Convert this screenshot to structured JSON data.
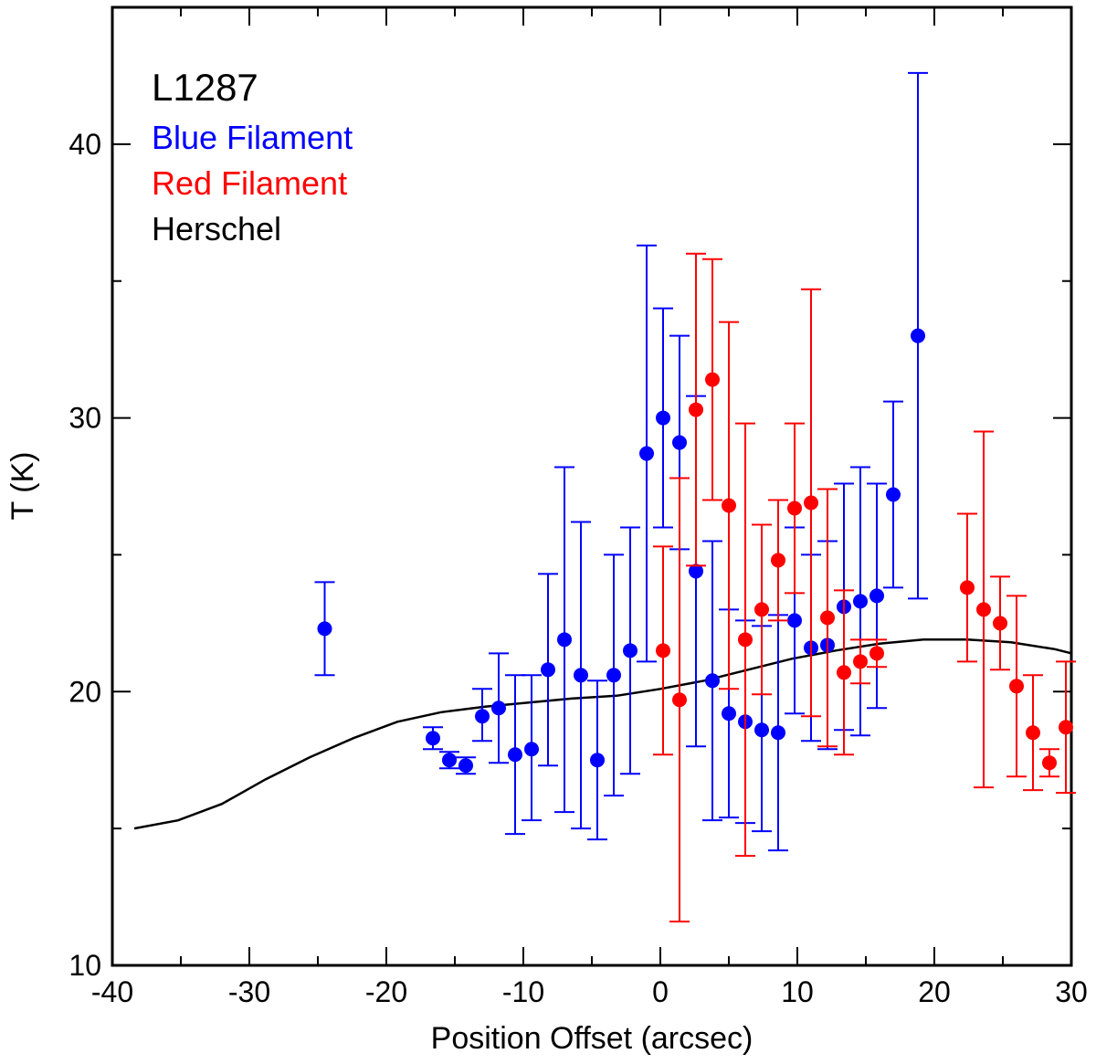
{
  "chart_data": {
    "type": "scatter",
    "title": "",
    "xlabel": "Position Offset (arcsec)",
    "ylabel": "T (K)",
    "xlim": [
      -40,
      30
    ],
    "ylim": [
      10,
      45
    ],
    "xticks": [
      -40,
      -30,
      -20,
      -10,
      0,
      10,
      20,
      30
    ],
    "yticks": [
      10,
      20,
      30,
      40
    ],
    "legend": {
      "title": "L1287",
      "entries": [
        {
          "label": "Blue Filament",
          "color": "#0000ff"
        },
        {
          "label": "Red Filament",
          "color": "#ff0000"
        },
        {
          "label": "Herschel",
          "color": "#000000"
        }
      ]
    },
    "series": [
      {
        "name": "Blue Filament",
        "color": "#0000ff",
        "points": [
          {
            "x": -24.5,
            "y": 22.3,
            "lo": 20.6,
            "hi": 24.0
          },
          {
            "x": -16.6,
            "y": 18.3,
            "lo": 17.9,
            "hi": 18.7
          },
          {
            "x": -15.4,
            "y": 17.5,
            "lo": 17.2,
            "hi": 17.8
          },
          {
            "x": -14.2,
            "y": 17.3,
            "lo": 17.0,
            "hi": 17.6
          },
          {
            "x": -13.0,
            "y": 19.1,
            "lo": 18.2,
            "hi": 20.1
          },
          {
            "x": -11.8,
            "y": 19.4,
            "lo": 17.4,
            "hi": 21.4
          },
          {
            "x": -10.6,
            "y": 17.7,
            "lo": 14.8,
            "hi": 20.6
          },
          {
            "x": -9.4,
            "y": 17.9,
            "lo": 15.3,
            "hi": 20.6
          },
          {
            "x": -8.2,
            "y": 20.8,
            "lo": 17.3,
            "hi": 24.3
          },
          {
            "x": -7.0,
            "y": 21.9,
            "lo": 15.6,
            "hi": 28.2
          },
          {
            "x": -5.8,
            "y": 20.6,
            "lo": 15.0,
            "hi": 26.2
          },
          {
            "x": -4.6,
            "y": 17.5,
            "lo": 14.6,
            "hi": 20.4
          },
          {
            "x": -3.4,
            "y": 20.6,
            "lo": 16.2,
            "hi": 25.0
          },
          {
            "x": -2.2,
            "y": 21.5,
            "lo": 17.0,
            "hi": 26.0
          },
          {
            "x": -1.0,
            "y": 28.7,
            "lo": 21.1,
            "hi": 36.3
          },
          {
            "x": 0.2,
            "y": 30.0,
            "lo": 26.0,
            "hi": 34.0
          },
          {
            "x": 1.4,
            "y": 29.1,
            "lo": 25.2,
            "hi": 33.0
          },
          {
            "x": 2.6,
            "y": 24.4,
            "lo": 18.0,
            "hi": 30.8
          },
          {
            "x": 3.8,
            "y": 20.4,
            "lo": 15.3,
            "hi": 25.5
          },
          {
            "x": 5.0,
            "y": 19.2,
            "lo": 15.4,
            "hi": 23.0
          },
          {
            "x": 6.2,
            "y": 18.9,
            "lo": 15.2,
            "hi": 22.6
          },
          {
            "x": 7.4,
            "y": 18.6,
            "lo": 14.9,
            "hi": 22.4
          },
          {
            "x": 8.6,
            "y": 18.5,
            "lo": 14.2,
            "hi": 22.8
          },
          {
            "x": 9.8,
            "y": 22.6,
            "lo": 19.2,
            "hi": 26.0
          },
          {
            "x": 11.0,
            "y": 21.6,
            "lo": 18.2,
            "hi": 25.0
          },
          {
            "x": 12.2,
            "y": 21.7,
            "lo": 17.9,
            "hi": 25.5
          },
          {
            "x": 13.4,
            "y": 23.1,
            "lo": 18.6,
            "hi": 27.6
          },
          {
            "x": 14.6,
            "y": 23.3,
            "lo": 18.4,
            "hi": 28.2
          },
          {
            "x": 15.8,
            "y": 23.5,
            "lo": 19.4,
            "hi": 27.6
          },
          {
            "x": 17.0,
            "y": 27.2,
            "lo": 23.8,
            "hi": 30.6
          },
          {
            "x": 18.8,
            "y": 33.0,
            "lo": 23.4,
            "hi": 42.6
          }
        ]
      },
      {
        "name": "Red Filament",
        "color": "#ff0000",
        "points": [
          {
            "x": 0.2,
            "y": 21.5,
            "lo": 17.7,
            "hi": 25.3
          },
          {
            "x": 1.4,
            "y": 19.7,
            "lo": 11.6,
            "hi": 27.8
          },
          {
            "x": 2.6,
            "y": 30.3,
            "lo": 24.6,
            "hi": 36.0
          },
          {
            "x": 3.8,
            "y": 31.4,
            "lo": 27.0,
            "hi": 35.8
          },
          {
            "x": 5.0,
            "y": 26.8,
            "lo": 20.1,
            "hi": 33.5
          },
          {
            "x": 6.2,
            "y": 21.9,
            "lo": 14.0,
            "hi": 29.8
          },
          {
            "x": 7.4,
            "y": 23.0,
            "lo": 19.9,
            "hi": 26.1
          },
          {
            "x": 8.6,
            "y": 24.8,
            "lo": 22.6,
            "hi": 27.0
          },
          {
            "x": 9.8,
            "y": 26.7,
            "lo": 23.6,
            "hi": 29.8
          },
          {
            "x": 11.0,
            "y": 26.9,
            "lo": 19.1,
            "hi": 34.7
          },
          {
            "x": 12.2,
            "y": 22.7,
            "lo": 18.0,
            "hi": 27.4
          },
          {
            "x": 13.4,
            "y": 20.7,
            "lo": 17.7,
            "hi": 23.7
          },
          {
            "x": 14.6,
            "y": 21.1,
            "lo": 20.3,
            "hi": 21.9
          },
          {
            "x": 15.8,
            "y": 21.4,
            "lo": 20.9,
            "hi": 21.9
          },
          {
            "x": 22.4,
            "y": 23.8,
            "lo": 21.1,
            "hi": 26.5
          },
          {
            "x": 23.6,
            "y": 23.0,
            "lo": 16.5,
            "hi": 29.5
          },
          {
            "x": 24.8,
            "y": 22.5,
            "lo": 20.8,
            "hi": 24.2
          },
          {
            "x": 26.0,
            "y": 20.2,
            "lo": 16.9,
            "hi": 23.5
          },
          {
            "x": 27.2,
            "y": 18.5,
            "lo": 16.4,
            "hi": 20.6
          },
          {
            "x": 28.4,
            "y": 17.4,
            "lo": 16.9,
            "hi": 17.9
          },
          {
            "x": 29.6,
            "y": 18.7,
            "lo": 16.3,
            "hi": 21.1
          }
        ]
      },
      {
        "name": "Herschel",
        "color": "#000000",
        "line": [
          {
            "x": -38.4,
            "y": 15.0
          },
          {
            "x": -35.2,
            "y": 15.3
          },
          {
            "x": -32.0,
            "y": 15.9
          },
          {
            "x": -28.8,
            "y": 16.8
          },
          {
            "x": -25.6,
            "y": 17.6
          },
          {
            "x": -22.4,
            "y": 18.3
          },
          {
            "x": -19.2,
            "y": 18.9
          },
          {
            "x": -16.0,
            "y": 19.25
          },
          {
            "x": -12.8,
            "y": 19.45
          },
          {
            "x": -9.6,
            "y": 19.6
          },
          {
            "x": -6.4,
            "y": 19.75
          },
          {
            "x": -3.2,
            "y": 19.85
          },
          {
            "x": 0.0,
            "y": 20.1
          },
          {
            "x": 3.2,
            "y": 20.4
          },
          {
            "x": 6.4,
            "y": 20.8
          },
          {
            "x": 9.6,
            "y": 21.2
          },
          {
            "x": 12.8,
            "y": 21.5
          },
          {
            "x": 16.0,
            "y": 21.75
          },
          {
            "x": 19.2,
            "y": 21.9
          },
          {
            "x": 22.4,
            "y": 21.9
          },
          {
            "x": 25.6,
            "y": 21.8
          },
          {
            "x": 28.8,
            "y": 21.55
          },
          {
            "x": 30.0,
            "y": 21.4
          }
        ]
      }
    ]
  }
}
